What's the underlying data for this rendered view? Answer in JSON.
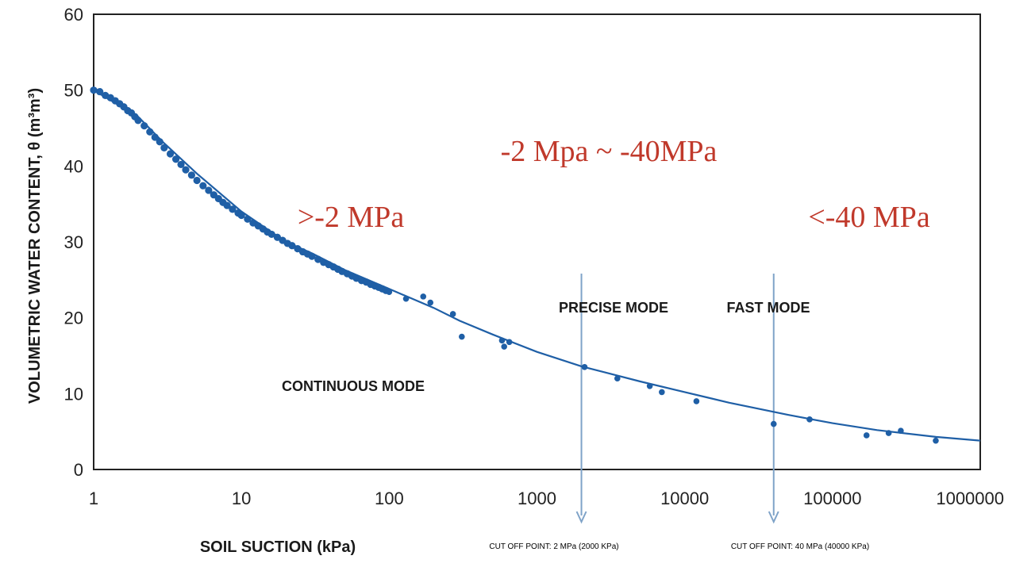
{
  "chart_data": {
    "type": "scatter",
    "title": "",
    "xlabel": "SOIL SUCTION (kPa)",
    "ylabel": "VOLUMETRIC WATER CONTENT, θ (m³m³)",
    "x_scale": "log",
    "xlim": [
      1,
      1000000
    ],
    "ylim": [
      0,
      60
    ],
    "x_ticks": [
      "1",
      "10",
      "100",
      "1000",
      "10000",
      "100000",
      "1000000"
    ],
    "x_tick_values": [
      1,
      10,
      100,
      1000,
      10000,
      100000,
      1000000
    ],
    "y_ticks": [
      "0",
      "10",
      "20",
      "30",
      "40",
      "50",
      "60"
    ],
    "y_tick_values": [
      0,
      10,
      20,
      30,
      40,
      50,
      60
    ],
    "grid": false,
    "series": [
      {
        "kind": "points",
        "color": "#1f5fa6",
        "x": [
          1.0,
          1.1,
          1.2,
          1.3,
          1.4,
          1.5,
          1.6,
          1.7,
          1.8,
          1.9,
          2.0,
          2.2,
          2.4,
          2.6,
          2.8,
          3.0,
          3.3,
          3.6,
          3.9,
          4.2,
          4.6,
          5.0,
          5.5,
          6.0,
          6.5,
          7.0,
          7.5,
          8.0,
          8.7,
          9.5,
          10,
          11,
          12,
          13,
          14,
          15,
          16,
          17.5,
          19,
          20.5,
          22,
          24,
          26,
          28,
          30,
          33,
          36,
          39,
          42,
          45,
          48,
          52,
          56,
          60,
          65,
          70,
          75,
          80,
          85,
          90,
          95,
          100,
          130,
          170,
          190,
          270,
          310,
          580,
          600,
          650,
          2100,
          3500,
          5800,
          7000,
          12000,
          40000,
          70000,
          170000,
          240000,
          290000,
          500000
        ],
        "y": [
          50.0,
          49.8,
          49.3,
          49.0,
          48.6,
          48.2,
          47.8,
          47.3,
          47.0,
          46.5,
          46.0,
          45.3,
          44.5,
          43.8,
          43.2,
          42.4,
          41.6,
          40.9,
          40.2,
          39.5,
          38.8,
          38.1,
          37.4,
          36.8,
          36.2,
          35.7,
          35.2,
          34.8,
          34.3,
          33.8,
          33.5,
          33.0,
          32.5,
          32.1,
          31.7,
          31.3,
          31.0,
          30.6,
          30.2,
          29.8,
          29.5,
          29.1,
          28.7,
          28.4,
          28.1,
          27.7,
          27.3,
          27.0,
          26.7,
          26.4,
          26.1,
          25.8,
          25.5,
          25.2,
          24.9,
          24.7,
          24.4,
          24.2,
          24.0,
          23.8,
          23.6,
          23.4,
          22.5,
          22.8,
          22.0,
          20.5,
          17.5,
          17.0,
          16.2,
          16.8,
          13.5,
          12.0,
          11.0,
          10.2,
          9.0,
          6.0,
          6.6,
          4.5,
          4.8,
          5.1,
          3.8
        ]
      },
      {
        "kind": "fitted-curve",
        "color": "#1f5fa6",
        "x": [
          1,
          2,
          3,
          5,
          10,
          20,
          30,
          50,
          100,
          200,
          300,
          500,
          1000,
          2000,
          5000,
          10000,
          20000,
          50000,
          100000,
          200000,
          500000,
          1000000
        ],
        "y": [
          50,
          46.5,
          43,
          39,
          34,
          30,
          28.5,
          26.3,
          23.8,
          21.3,
          19.6,
          17.8,
          15.5,
          13.6,
          11.6,
          10.2,
          8.8,
          7.2,
          6.1,
          5.2,
          4.3,
          3.8
        ]
      }
    ],
    "cutoffs": [
      {
        "x": 2000,
        "label": "CUT OFF POINT: 2 MPa (2000 KPa)",
        "color": "#7fa3c8"
      },
      {
        "x": 40000,
        "label": "CUT OFF POINT: 40 MPa (40000 KPa)",
        "color": "#7fa3c8"
      }
    ],
    "mode_labels": [
      "CONTINUOUS MODE",
      "PRECISE MODE",
      "FAST MODE"
    ],
    "range_labels": [
      ">-2 MPa",
      "-2 Mpa ~ -40MPa",
      "<-40 MPa"
    ],
    "range_color": "#c0392b",
    "axis_color": "#222222"
  }
}
